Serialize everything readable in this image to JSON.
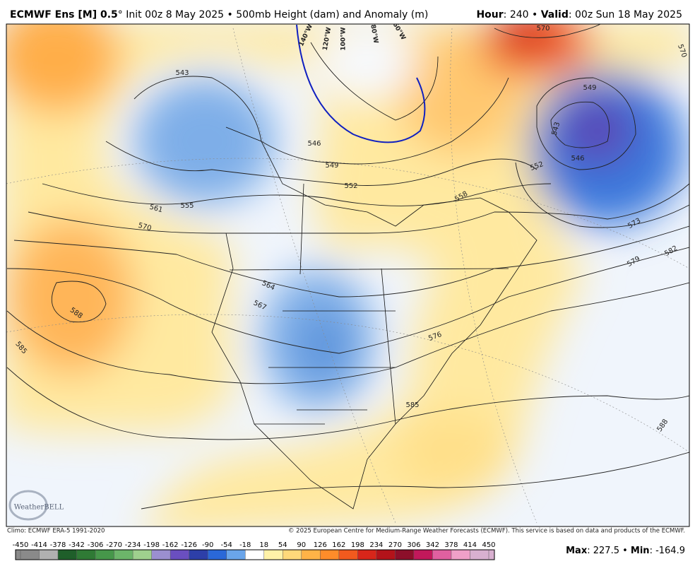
{
  "header": {
    "model": "ECMWF Ens [M] 0.5",
    "description": "° Init 00z 8 May 2025 • 500mb Height (dam) and Anomaly (m)",
    "hour_label": "Hour",
    "hour_value": ": 240 • ",
    "valid_label": "Valid",
    "valid_value": ": 00z Sun 18 May 2025"
  },
  "map": {
    "longitude_labels": [
      "140°W",
      "120°W",
      "100°W",
      "80°W",
      "60°W"
    ],
    "contour_labels": [
      "570",
      "570",
      "549",
      "543",
      "546",
      "552",
      "573",
      "582",
      "579",
      "558",
      "549",
      "552",
      "546",
      "543",
      "561",
      "555",
      "570",
      "588",
      "585",
      "564",
      "567",
      "576",
      "585",
      "588"
    ],
    "logo": "WeatherBELL"
  },
  "footer": {
    "climo": "Climo: ECMWF ERA-5 1991-2020",
    "copyright": "© 2025 European Centre for Medium-Range Weather Forecasts (ECMWF). This service is based on data and products of the ECMWF."
  },
  "colorbar": {
    "ticks": [
      -450,
      -414,
      -378,
      -342,
      -306,
      -270,
      -234,
      -198,
      -162,
      -126,
      -90,
      -54,
      -18,
      18,
      54,
      90,
      126,
      162,
      198,
      234,
      270,
      306,
      342,
      378,
      414,
      450
    ],
    "colors": [
      "#8a8a8a",
      "#b0b0b0",
      "#1f5f2a",
      "#2f7a35",
      "#46974a",
      "#6cb56a",
      "#9fd08e",
      "#9b8fd0",
      "#6a4fc0",
      "#2d3fa8",
      "#2a68d8",
      "#6aa5ea",
      "#ffffff",
      "#fff2a8",
      "#ffd97a",
      "#ffb347",
      "#ff8c2a",
      "#f25a1e",
      "#d8261a",
      "#b3131a",
      "#8c0f2a",
      "#c2185b",
      "#e060a0",
      "#f0a0c8",
      "#d8b0d0"
    ]
  },
  "stats": {
    "max_label": "Max",
    "max_sep": ": ",
    "max": 227.5,
    "bullet": " • ",
    "min_label": "Min",
    "min_sep": ": ",
    "min": -164.9
  }
}
